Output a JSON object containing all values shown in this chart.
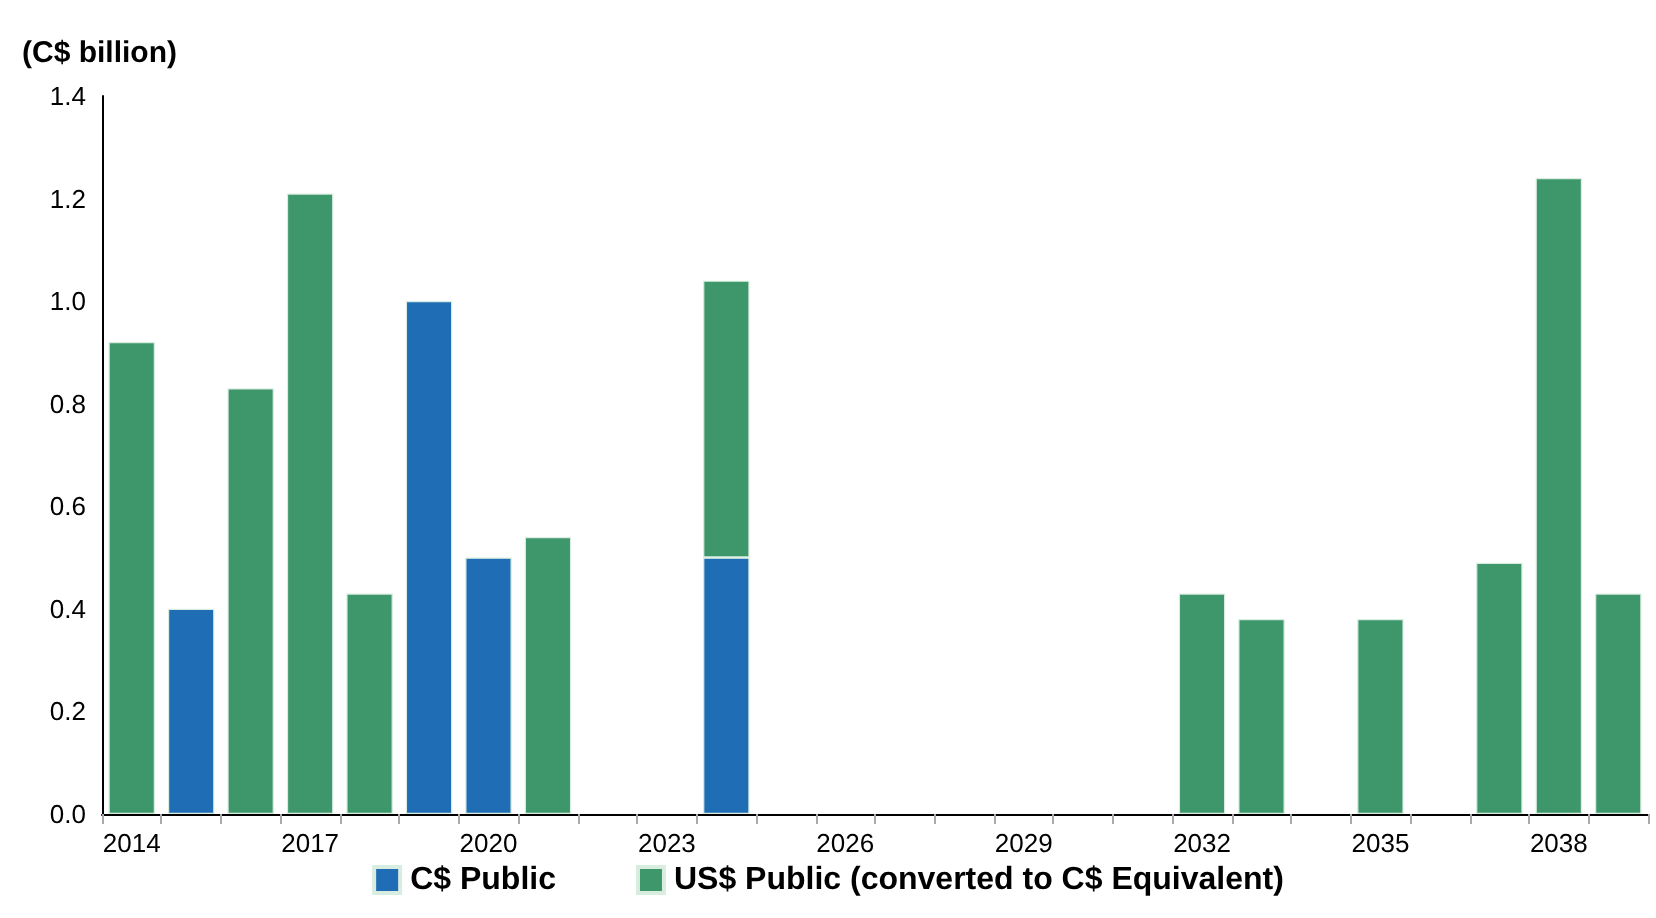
{
  "chart_data": {
    "type": "bar",
    "ylabel": "(C$ billion)",
    "stacked": true,
    "legend": "bottom",
    "grid": false,
    "categories": [
      "2014",
      null,
      null,
      "2017",
      null,
      null,
      "2020",
      null,
      null,
      "2023",
      null,
      null,
      "2026",
      null,
      null,
      "2029",
      null,
      null,
      "2032",
      null,
      null,
      "2035",
      null,
      null,
      "2038",
      null
    ],
    "series": [
      {
        "name": "C$ Public",
        "color": "#1f6db5",
        "values": [
          null,
          0.4,
          null,
          null,
          null,
          1.0,
          0.5,
          null,
          null,
          null,
          0.5,
          null,
          null,
          null,
          null,
          null,
          null,
          null,
          null,
          null,
          null,
          null,
          null,
          null,
          null,
          null
        ]
      },
      {
        "name": "US$ Public (converted to C$ Equivalent)",
        "color": "#3d976a",
        "values": [
          0.92,
          null,
          0.83,
          1.21,
          0.43,
          null,
          null,
          0.54,
          null,
          null,
          0.54,
          null,
          null,
          null,
          null,
          null,
          null,
          null,
          0.43,
          0.38,
          null,
          0.38,
          null,
          0.49,
          1.24,
          0.43
        ]
      }
    ],
    "ylim": [
      0,
      1.4
    ],
    "yticks": [
      {
        "value": 0,
        "label": "0.0"
      },
      {
        "value": 0.2,
        "label": "0.2"
      },
      {
        "value": 0.4,
        "label": "0.4"
      },
      {
        "value": 0.6,
        "label": "0.6"
      },
      {
        "value": 0.8,
        "label": "0.8"
      },
      {
        "value": 1,
        "label": "1.0"
      },
      {
        "value": 1.2,
        "label": "1.2"
      },
      {
        "value": 1.4,
        "label": "1.4"
      }
    ]
  }
}
